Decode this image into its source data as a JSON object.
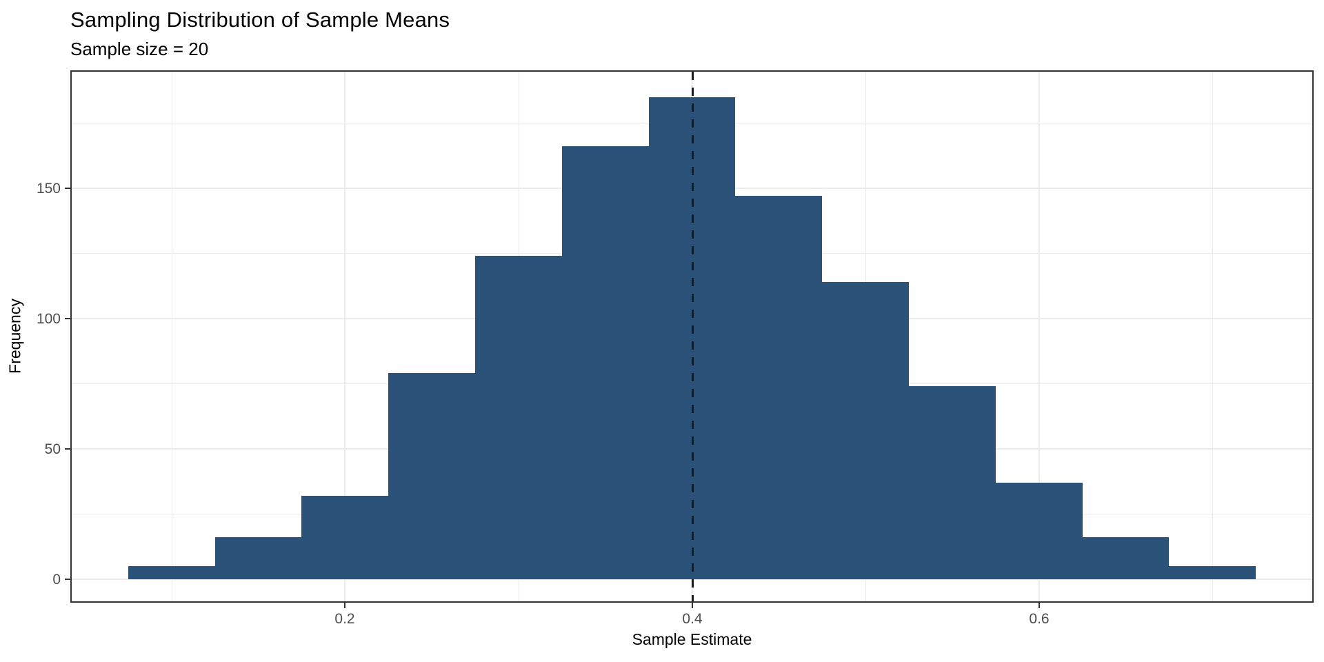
{
  "chart_data": {
    "type": "bar",
    "subtype": "histogram",
    "title": "Sampling Distribution of Sample Means",
    "subtitle": "Sample size = 20",
    "xlabel": "Sample Estimate",
    "ylabel": "Frequency",
    "bin_width": 0.05,
    "bin_centers": [
      0.1,
      0.15,
      0.2,
      0.25,
      0.3,
      0.35,
      0.4,
      0.45,
      0.5,
      0.55,
      0.6,
      0.65,
      0.7
    ],
    "counts": [
      5,
      16,
      32,
      79,
      124,
      166,
      185,
      147,
      114,
      74,
      37,
      16,
      5
    ],
    "mean_vline_x": 0.4,
    "x_tick_values": [
      0.2,
      0.4,
      0.6
    ],
    "x_tick_labels": [
      "0.2",
      "0.4",
      "0.6"
    ],
    "y_tick_values": [
      0,
      50,
      100,
      150
    ],
    "y_tick_labels": [
      "0",
      "50",
      "100",
      "150"
    ],
    "x_minor_values": [
      0.1,
      0.3,
      0.5,
      0.7
    ],
    "y_minor_values": [
      25,
      75,
      125,
      175
    ],
    "xlim": [
      0.0425,
      0.7575
    ],
    "ylim": [
      -8.5,
      194.7
    ],
    "grid": true,
    "legend_position": "none",
    "colors": {
      "bar_fill": "#2b5278",
      "grid": "#ebebeb",
      "panel_border": "#333333",
      "tick_mark": "#333333",
      "tick_label": "#4d4d4d",
      "axis_title": "#000000",
      "title_text": "#000000",
      "vline": "#1a1a1a",
      "background": "#ffffff"
    }
  }
}
